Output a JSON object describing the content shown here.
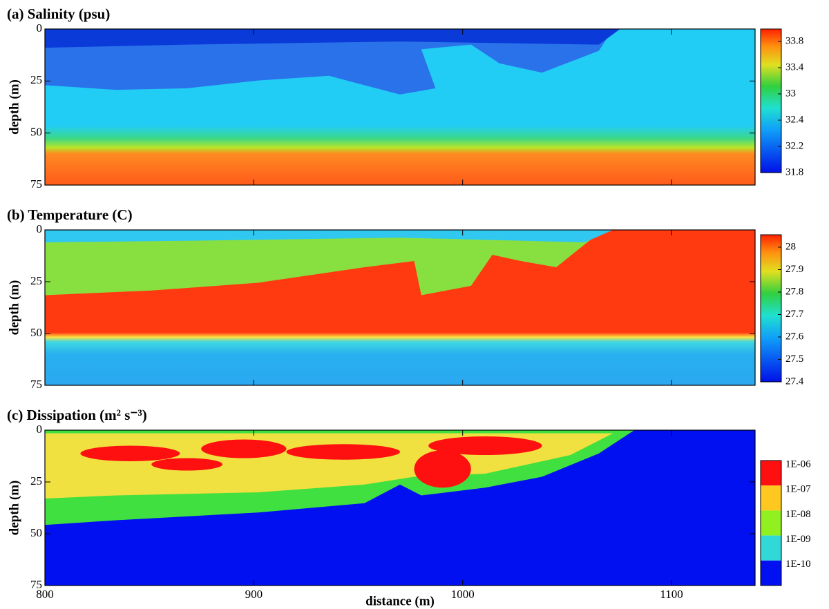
{
  "chart_data": [
    {
      "type": "heatmap",
      "title": "(a) Salinity (psu)",
      "ylabel": "depth (m)",
      "xlim": [
        800,
        1140
      ],
      "xticks": [
        800,
        900,
        1000,
        1100
      ],
      "ylim": [
        75,
        0
      ],
      "yticks": [
        0,
        25,
        50,
        75
      ],
      "colorbar": {
        "ticks": [
          33.8,
          33.4,
          33,
          32.4,
          32.2,
          31.8
        ]
      }
    },
    {
      "type": "heatmap",
      "title": "(b) Temperature (C)",
      "ylabel": "depth (m)",
      "xlim": [
        800,
        1140
      ],
      "xticks": [
        800,
        900,
        1000,
        1100
      ],
      "ylim": [
        75,
        0
      ],
      "yticks": [
        0,
        25,
        50,
        75
      ],
      "colorbar": {
        "ticks": [
          28,
          27.9,
          27.8,
          27.7,
          27.6,
          27.5,
          27.4
        ]
      }
    },
    {
      "type": "heatmap",
      "title": "(c) Dissipation (m² s⁻³)",
      "ylabel": "depth (m)",
      "xlabel": "distance (m)",
      "xlim": [
        800,
        1140
      ],
      "xticks": [
        800,
        900,
        1000,
        1100
      ],
      "ylim": [
        75,
        0
      ],
      "yticks": [
        0,
        25,
        50,
        75
      ],
      "colorbar": {
        "log": true,
        "ticks": [
          {
            "value": 1e-06,
            "label": "1E-06"
          },
          {
            "value": 1e-07,
            "label": "1E-07"
          },
          {
            "value": 1e-08,
            "label": "1E-08"
          },
          {
            "value": 1e-09,
            "label": "1E-09"
          },
          {
            "value": 1e-10,
            "label": "1E-10"
          }
        ]
      }
    }
  ]
}
